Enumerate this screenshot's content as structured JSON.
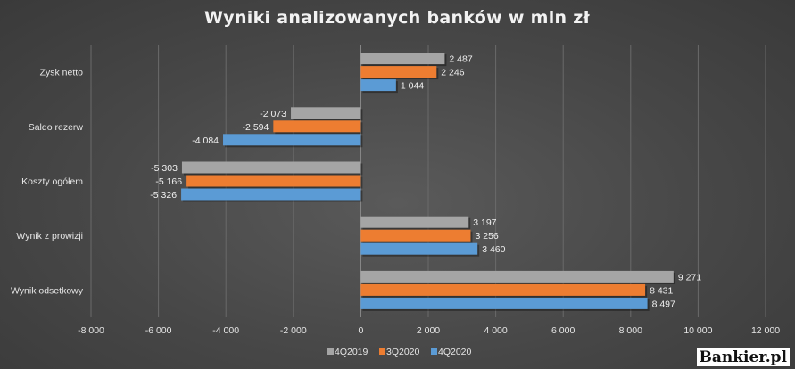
{
  "chart_data": {
    "type": "bar",
    "orientation": "horizontal",
    "title": "Wyniki analizowanych banków w mln zł",
    "categories": [
      "Zysk netto",
      "Saldo rezerw",
      "Koszty ogółem",
      "Wynik z prowizji",
      "Wynik odsetkowy"
    ],
    "series": [
      {
        "name": "4Q2019",
        "color": "#a5a5a5",
        "values": [
          2487,
          -2073,
          -5303,
          3197,
          9271
        ],
        "labels": [
          "2 487",
          "-2 073",
          "-5 303",
          "3 197",
          "9 271"
        ]
      },
      {
        "name": "3Q2020",
        "color": "#ed7d31",
        "values": [
          2246,
          -2594,
          -5166,
          3256,
          8431
        ],
        "labels": [
          "2 246",
          "-2 594",
          "-5 166",
          "3 256",
          "8 431"
        ]
      },
      {
        "name": "4Q2020",
        "color": "#5b9bd5",
        "values": [
          1044,
          -4084,
          -5326,
          3460,
          8497
        ],
        "labels": [
          "1 044",
          "-4 084",
          "-5 326",
          "3 460",
          "8 497"
        ]
      }
    ],
    "xlim": [
      -8000,
      12000
    ],
    "xticks": [
      -8000,
      -6000,
      -4000,
      -2000,
      0,
      2000,
      4000,
      6000,
      8000,
      10000,
      12000
    ],
    "xtick_labels": [
      "-8 000",
      "-6 000",
      "-4 000",
      "-2 000",
      "0",
      "2 000",
      "4 000",
      "6 000",
      "8 000",
      "10 000",
      "12 000"
    ],
    "grid": true,
    "legend_position": "bottom"
  },
  "watermark": "Bankier.pl"
}
